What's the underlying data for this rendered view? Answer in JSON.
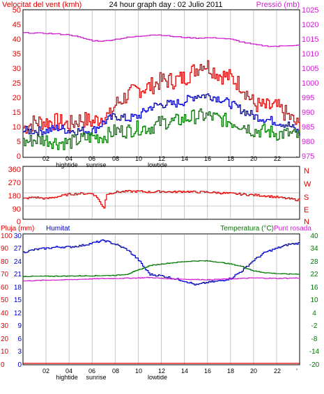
{
  "header": {
    "left_label": "Velocitat del vent (kmh)",
    "title": "24 hour graph day : 02 Julio 2011",
    "right_label": "Pressió (mb)"
  },
  "colors": {
    "red": "#e00000",
    "blue": "#0000c8",
    "green": "#007800",
    "magenta": "#d020d0",
    "grid": "#c8c8c8",
    "frame": "#000000"
  },
  "x_axis": {
    "hour_labels": [
      "02",
      "04",
      "06",
      "08",
      "10",
      "12",
      "14",
      "16",
      "18",
      "20",
      "22"
    ],
    "end_marker": "'",
    "events": [
      {
        "label": "hightide",
        "hour": 3.7
      },
      {
        "label": "sunrise",
        "hour": 6.3
      },
      {
        "label": "lowtide",
        "hour": 11.8
      }
    ]
  },
  "panels": {
    "wind_pressure": {
      "left_ticks": [
        "50",
        "45",
        "40",
        "35",
        "30",
        "25",
        "20",
        "15",
        "10",
        "5",
        "0"
      ],
      "right_ticks": [
        "1025",
        "1020",
        "1015",
        "1010",
        "1005",
        "1000",
        "995",
        "990",
        "985",
        "980",
        "975"
      ]
    },
    "direction": {
      "left_ticks": [
        "360",
        "270",
        "180",
        "90",
        "0"
      ],
      "right_letters": [
        "N",
        "W",
        "S",
        "E",
        "N"
      ]
    },
    "rain_temp": {
      "top_left_label": "Pluja (mm)",
      "top_mid_label": "Humitat",
      "top_right_label": "Temperatura (°C)",
      "top_right_label2": "Punt rosada",
      "rain_ticks": [
        "100",
        "90",
        "80",
        "70",
        "60",
        "50",
        "40",
        "30",
        "20",
        "10",
        "0"
      ],
      "humidity_ticks": [
        "30",
        "27",
        "24",
        "21",
        "18",
        "15",
        "12",
        "9",
        "6",
        "3",
        "0"
      ],
      "temp_ticks": [
        "40",
        "34",
        "28",
        "22",
        "16",
        "10",
        "4",
        "-2",
        "-8",
        "-14",
        "-20"
      ]
    }
  },
  "chart_data": [
    {
      "type": "line",
      "name": "wind-pressure-panel",
      "x_unit": "hour",
      "xlim": [
        0,
        24
      ],
      "ylim_left": [
        0,
        50
      ],
      "ylim_right": [
        975,
        1025
      ],
      "grid": true,
      "series": [
        {
          "role": "wind-gust",
          "axis": "left",
          "color": "#e00000",
          "x": [
            0,
            1,
            2,
            3,
            4,
            5,
            6,
            7,
            7.5,
            8,
            9,
            10,
            11,
            12,
            13,
            14,
            15,
            15.5,
            16,
            17,
            18,
            19,
            20,
            21,
            22,
            23,
            24
          ],
          "y": [
            10,
            12,
            12,
            12,
            11,
            13,
            12,
            14,
            14,
            18,
            21,
            23,
            24,
            26,
            26,
            27,
            30,
            32,
            31,
            28,
            27,
            24,
            18,
            17,
            17,
            14,
            10
          ]
        },
        {
          "role": "wind-avg",
          "axis": "left",
          "color": "#0000c8",
          "x": [
            0,
            1,
            2,
            3,
            4,
            5,
            6,
            7,
            8,
            9,
            10,
            11,
            12,
            13,
            14,
            15,
            16,
            17,
            18,
            19,
            20,
            21,
            22,
            23,
            24
          ],
          "y": [
            9,
            9,
            9,
            10,
            9,
            9,
            9,
            12,
            14,
            13,
            14,
            17,
            18,
            18,
            19,
            21,
            21,
            20,
            18,
            16,
            14,
            13,
            12,
            11,
            8
          ]
        },
        {
          "role": "wind-min",
          "axis": "left",
          "color": "#007800",
          "x": [
            0,
            1,
            2,
            3,
            4,
            5,
            6,
            7,
            8,
            9,
            10,
            11,
            12,
            13,
            14,
            15,
            16,
            17,
            18,
            19,
            20,
            21,
            22,
            23,
            24
          ],
          "y": [
            5,
            6,
            6,
            5,
            5,
            6,
            7,
            7,
            9,
            9,
            10,
            10,
            12,
            12,
            13,
            14,
            14,
            13,
            12,
            11,
            9,
            9,
            8,
            8,
            7
          ]
        },
        {
          "role": "pressure",
          "axis": "right",
          "color": "#d020d0",
          "x": [
            0,
            2,
            4,
            6,
            7,
            8,
            9,
            10,
            11,
            12,
            13,
            14,
            15,
            16,
            17,
            18,
            19,
            20,
            21,
            22,
            23,
            24
          ],
          "y": [
            1017.2,
            1017,
            1016.5,
            1014.5,
            1014.4,
            1015,
            1015.6,
            1016,
            1016.5,
            1016.4,
            1015.9,
            1015.6,
            1015.4,
            1015.5,
            1015.4,
            1015,
            1014,
            1013.2,
            1012.7,
            1012.6,
            1012.9,
            1013
          ]
        }
      ]
    },
    {
      "type": "line",
      "name": "wind-direction-panel",
      "x_unit": "hour",
      "xlim": [
        0,
        24
      ],
      "ylim": [
        0,
        360
      ],
      "grid": true,
      "series": [
        {
          "role": "direction",
          "color": "#e00000",
          "x": [
            0,
            1,
            2,
            3,
            4,
            5,
            6,
            6.5,
            6.8,
            7,
            7.2,
            8,
            9,
            10,
            11,
            12,
            13,
            14,
            15,
            16,
            17,
            18,
            19,
            20,
            21,
            22,
            23,
            24
          ],
          "y": [
            140,
            150,
            140,
            155,
            170,
            175,
            175,
            140,
            90,
            80,
            170,
            185,
            190,
            190,
            185,
            190,
            185,
            190,
            185,
            185,
            180,
            175,
            170,
            165,
            160,
            150,
            140,
            130
          ]
        }
      ]
    },
    {
      "type": "line",
      "name": "rain-humidity-temperature-panel",
      "x_unit": "hour",
      "xlim": [
        0,
        24
      ],
      "ylim_rain": [
        0,
        100
      ],
      "ylim_humidity": [
        0,
        30
      ],
      "ylim_temperature": [
        -20,
        40
      ],
      "grid": true,
      "series": [
        {
          "role": "humidity",
          "color": "#0000c8",
          "x": [
            0,
            1,
            2,
            3,
            4,
            5,
            6,
            7,
            8,
            9,
            10,
            10.5,
            11,
            12,
            13,
            14,
            15,
            16,
            17,
            18,
            19,
            20,
            21,
            22,
            23,
            24
          ],
          "y": [
            86,
            88,
            89,
            90,
            90,
            91,
            93,
            95,
            92,
            88,
            80,
            74,
            69,
            68,
            66,
            64,
            61,
            63,
            64,
            66,
            72,
            80,
            86,
            89,
            92,
            93
          ]
        },
        {
          "role": "temperature",
          "color": "#007800",
          "x": [
            0,
            2,
            4,
            6,
            8,
            9,
            10,
            11,
            12,
            13,
            14,
            15,
            16,
            17,
            18,
            19,
            20,
            21,
            22,
            23,
            24
          ],
          "y": [
            20.5,
            20.6,
            20.7,
            20.8,
            21,
            21.5,
            23.5,
            25.5,
            26.2,
            26.8,
            27.3,
            27.6,
            27.6,
            27,
            26.2,
            25,
            23,
            22.2,
            21.8,
            21.6,
            21.6
          ]
        },
        {
          "role": "dew-point",
          "color": "#d020d0",
          "x": [
            0,
            2,
            4,
            6,
            8,
            10,
            11,
            12,
            14,
            16,
            18,
            20,
            22,
            24
          ],
          "y": [
            18.4,
            18.8,
            19,
            19.4,
            19.6,
            19.8,
            20,
            19.6,
            19.2,
            19,
            19.4,
            19.8,
            19.6,
            19.8
          ]
        },
        {
          "role": "rain",
          "color": "#e00000",
          "x": [
            0,
            24
          ],
          "y": [
            0,
            0
          ]
        }
      ]
    }
  ]
}
